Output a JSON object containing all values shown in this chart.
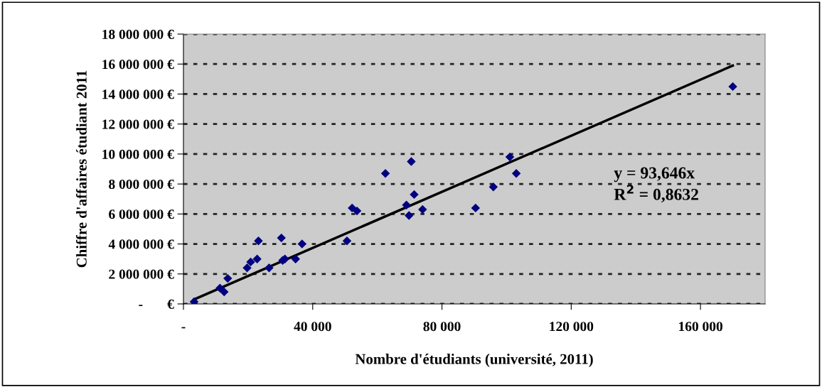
{
  "chart_data": {
    "type": "scatter",
    "xlabel": "Nombre d'étudiants (université, 2011)",
    "ylabel": "Chiffre d'affaires étudiant 2011",
    "series": [
      {
        "color": "#000080",
        "marker": "diamond",
        "x": [
          3300,
          11300,
          12600,
          13700,
          19700,
          20800,
          22800,
          23200,
          26500,
          30300,
          30700,
          31400,
          34700,
          36700,
          50600,
          52200,
          53700,
          62500,
          70500,
          69000,
          71400,
          69800,
          74000,
          90400,
          95900,
          101000,
          103000,
          170000
        ],
        "values": [
          140000,
          1050000,
          800000,
          1700000,
          2400000,
          2800000,
          3000000,
          4200000,
          2400000,
          4400000,
          2900000,
          3000000,
          3000000,
          4000000,
          4200000,
          6400000,
          6200000,
          8700000,
          9500000,
          6600000,
          7300000,
          5900000,
          6300000,
          6400000,
          7800000,
          9800000,
          8700000,
          14500000
        ]
      },
      {
        "type": "line",
        "color": "#000000",
        "marker": "none",
        "line_style": "solid",
        "x": [
          3300,
          170000
        ],
        "values": [
          300000,
          15900000
        ]
      }
    ],
    "xlim": [
      0,
      180000
    ],
    "xticks": [
      {
        "value": 0,
        "label": "-"
      },
      {
        "value": 40000,
        "label": "40 000"
      },
      {
        "value": 80000,
        "label": "80 000"
      },
      {
        "value": 120000,
        "label": "120 000"
      },
      {
        "value": 160000,
        "label": "160 000"
      }
    ],
    "ylim": [
      0,
      18000000
    ],
    "yticks": [
      {
        "value": 0,
        "label": "-       €"
      },
      {
        "value": 2000000,
        "label": "2 000 000 €"
      },
      {
        "value": 4000000,
        "label": "4 000 000 €"
      },
      {
        "value": 6000000,
        "label": "6 000 000 €"
      },
      {
        "value": 8000000,
        "label": "8 000 000 €"
      },
      {
        "value": 10000000,
        "label": "10 000 000 €"
      },
      {
        "value": 12000000,
        "label": "12 000 000 €"
      },
      {
        "value": 14000000,
        "label": "14 000 000 €"
      },
      {
        "value": 16000000,
        "label": "16 000 000 €"
      },
      {
        "value": 18000000,
        "label": "18 000 000 €"
      }
    ],
    "grid": "y",
    "annotations": [
      "y = 93,646x",
      "R$^{2}$ = 0,8632"
    ]
  }
}
